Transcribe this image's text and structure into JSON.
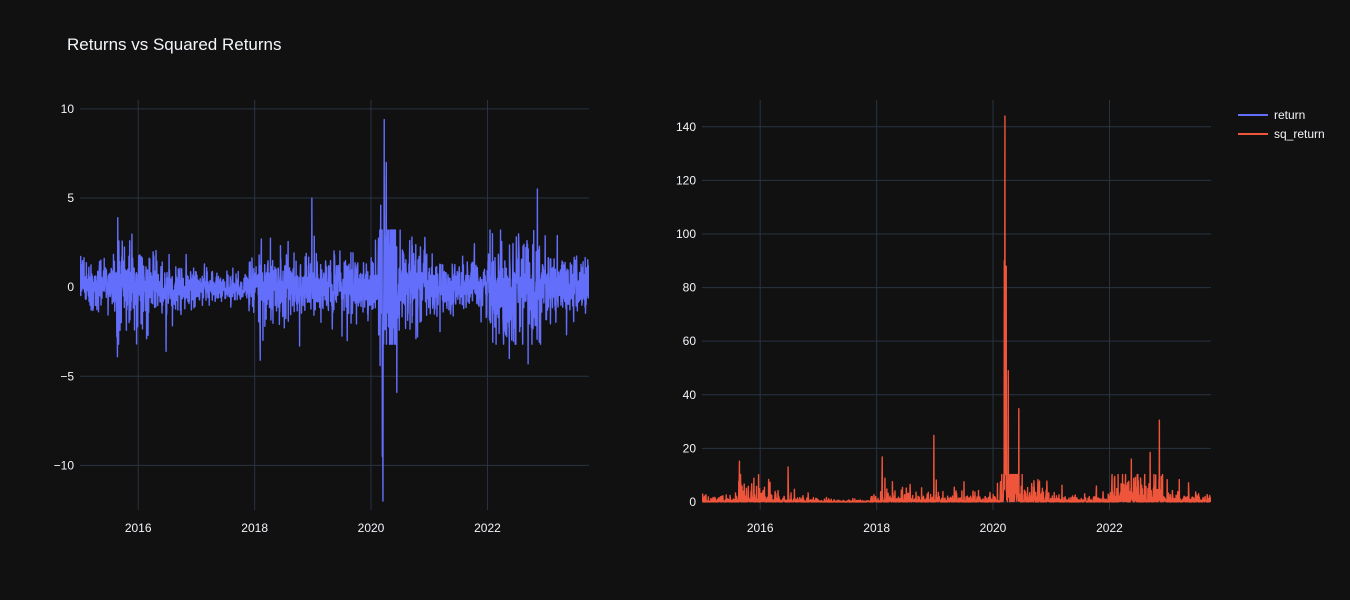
{
  "title": "Returns vs Squared Returns",
  "colors": {
    "background": "#111111",
    "grid": "#283442",
    "text": "#f2f5fa"
  },
  "legend": {
    "placement": "top-right",
    "entries": [
      {
        "name": "return",
        "color": "#636efa"
      },
      {
        "name": "sq_return",
        "color": "#ef553b"
      }
    ]
  },
  "chart_data": [
    {
      "type": "line",
      "series_name": "return",
      "color": "#636efa",
      "x_axis": {
        "type": "date",
        "range": [
          "2015-01-01",
          "2023-09-30"
        ],
        "ticks": [
          "2016",
          "2018",
          "2020",
          "2022"
        ]
      },
      "y_axis": {
        "range": [
          -12.5,
          10.5
        ],
        "ticks": [
          10,
          5,
          0,
          -5,
          -10
        ],
        "tick_labels": [
          "10",
          "5",
          "0",
          "−5",
          "−10"
        ]
      },
      "grid": true,
      "spikes": [
        {
          "date": "2015-08-24",
          "value": -3.9
        },
        {
          "date": "2015-08-26",
          "value": 3.9
        },
        {
          "date": "2016-06-24",
          "value": -3.6
        },
        {
          "date": "2018-02-05",
          "value": -4.1
        },
        {
          "date": "2018-02-12",
          "value": 2.7
        },
        {
          "date": "2018-10-10",
          "value": -3.3
        },
        {
          "date": "2018-12-26",
          "value": 5.0
        },
        {
          "date": "2019-08-05",
          "value": -3.0
        },
        {
          "date": "2020-02-27",
          "value": -4.4
        },
        {
          "date": "2020-03-02",
          "value": 4.6
        },
        {
          "date": "2020-03-12",
          "value": -9.5
        },
        {
          "date": "2020-03-16",
          "value": -12.0
        },
        {
          "date": "2020-03-24",
          "value": 9.4
        },
        {
          "date": "2020-04-06",
          "value": 7.0
        },
        {
          "date": "2020-06-11",
          "value": -5.9
        },
        {
          "date": "2022-05-18",
          "value": -4.0
        },
        {
          "date": "2022-09-13",
          "value": -4.3
        },
        {
          "date": "2022-11-10",
          "value": 5.5
        }
      ]
    },
    {
      "type": "line",
      "series_name": "sq_return",
      "color": "#ef553b",
      "x_axis": {
        "type": "date",
        "range": [
          "2015-01-01",
          "2023-09-30"
        ],
        "ticks": [
          "2016",
          "2018",
          "2020",
          "2022"
        ]
      },
      "y_axis": {
        "range": [
          -3,
          150
        ],
        "ticks": [
          140,
          120,
          100,
          80,
          60,
          40,
          20,
          0
        ]
      },
      "grid": true,
      "spikes": [
        {
          "date": "2015-08-24",
          "value": 15.2
        },
        {
          "date": "2016-06-24",
          "value": 13.0
        },
        {
          "date": "2018-02-05",
          "value": 16.8
        },
        {
          "date": "2018-12-26",
          "value": 24.8
        },
        {
          "date": "2020-03-12",
          "value": 90.0
        },
        {
          "date": "2020-03-16",
          "value": 144.0
        },
        {
          "date": "2020-03-24",
          "value": 88.0
        },
        {
          "date": "2020-04-06",
          "value": 49.0
        },
        {
          "date": "2020-06-11",
          "value": 34.8
        },
        {
          "date": "2022-05-18",
          "value": 16.0
        },
        {
          "date": "2022-09-13",
          "value": 18.5
        },
        {
          "date": "2022-11-10",
          "value": 30.5
        }
      ]
    }
  ]
}
